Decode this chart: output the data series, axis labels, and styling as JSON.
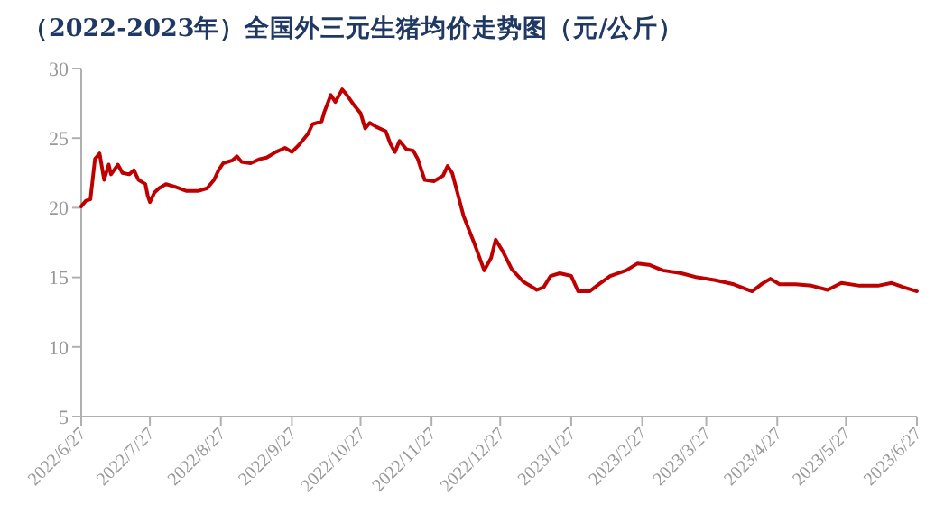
{
  "chart_data": {
    "type": "line",
    "title": "（2022-2023年）全国外三元生猪均价走势图（元/公斤）",
    "x": [
      "2022-06-27",
      "2022-06-29",
      "2022-07-01",
      "2022-07-03",
      "2022-07-05",
      "2022-07-07",
      "2022-07-09",
      "2022-07-10",
      "2022-07-13",
      "2022-07-15",
      "2022-07-18",
      "2022-07-20",
      "2022-07-22",
      "2022-07-25",
      "2022-07-26",
      "2022-07-27",
      "2022-07-29",
      "2022-07-31",
      "2022-08-03",
      "2022-08-07",
      "2022-08-12",
      "2022-08-17",
      "2022-08-21",
      "2022-08-24",
      "2022-08-26",
      "2022-08-28",
      "2022-09-01",
      "2022-09-03",
      "2022-09-05",
      "2022-09-09",
      "2022-09-13",
      "2022-09-16",
      "2022-09-20",
      "2022-09-24",
      "2022-09-27",
      "2022-09-30",
      "2022-10-04",
      "2022-10-06",
      "2022-10-10",
      "2022-10-11",
      "2022-10-14",
      "2022-10-16",
      "2022-10-19",
      "2022-10-21",
      "2022-10-24",
      "2022-10-27",
      "2022-10-29",
      "2022-10-31",
      "2022-11-03",
      "2022-11-07",
      "2022-11-09",
      "2022-11-11",
      "2022-11-13",
      "2022-11-16",
      "2022-11-19",
      "2022-11-21",
      "2022-11-24",
      "2022-11-28",
      "2022-12-02",
      "2022-12-04",
      "2022-12-06",
      "2022-12-11",
      "2022-12-16",
      "2022-12-20",
      "2022-12-23",
      "2022-12-25",
      "2022-12-28",
      "2023-01-01",
      "2023-01-06",
      "2023-01-12",
      "2023-01-15",
      "2023-01-18",
      "2023-01-22",
      "2023-01-27",
      "2023-01-30",
      "2023-02-04",
      "2023-02-08",
      "2023-02-13",
      "2023-02-20",
      "2023-02-25",
      "2023-03-02",
      "2023-03-08",
      "2023-03-16",
      "2023-03-23",
      "2023-03-31",
      "2023-04-08",
      "2023-04-16",
      "2023-04-20",
      "2023-04-24",
      "2023-04-28",
      "2023-05-05",
      "2023-05-12",
      "2023-05-19",
      "2023-05-25",
      "2023-06-02",
      "2023-06-10",
      "2023-06-16",
      "2023-06-21",
      "2023-06-27"
    ],
    "series": [
      {
        "color": "#c00000",
        "values": [
          20.1,
          20.5,
          20.6,
          23.5,
          23.9,
          22.0,
          23.1,
          22.4,
          23.1,
          22.5,
          22.4,
          22.7,
          22.0,
          21.7,
          20.9,
          20.4,
          21.1,
          21.4,
          21.7,
          21.5,
          21.2,
          21.2,
          21.4,
          22.0,
          22.7,
          23.2,
          23.4,
          23.7,
          23.3,
          23.2,
          23.5,
          23.6,
          24.0,
          24.3,
          24.0,
          24.5,
          25.3,
          26.0,
          26.2,
          26.8,
          28.1,
          27.6,
          28.5,
          28.1,
          27.4,
          26.8,
          25.7,
          26.1,
          25.8,
          25.5,
          24.6,
          24.0,
          24.8,
          24.2,
          24.1,
          23.5,
          22.0,
          21.9,
          22.3,
          23.0,
          22.5,
          19.4,
          17.3,
          15.5,
          16.4,
          17.7,
          16.9,
          15.6,
          14.7,
          14.1,
          14.3,
          15.1,
          15.3,
          15.1,
          14.0,
          14.0,
          14.5,
          15.1,
          15.5,
          16.0,
          15.9,
          15.5,
          15.3,
          15.0,
          14.8,
          14.5,
          14.0,
          14.5,
          14.9,
          14.5,
          14.5,
          14.4,
          14.1,
          14.6,
          14.4,
          14.4,
          14.6,
          14.3,
          14.0
        ]
      }
    ],
    "xlim": [
      "2022-06-27",
      "2023-06-27"
    ],
    "xticks": [
      {
        "value": "2022-06-27",
        "label": "2022/6/27"
      },
      {
        "value": "2022-07-27",
        "label": "2022/7/27"
      },
      {
        "value": "2022-08-27",
        "label": "2022/8/27"
      },
      {
        "value": "2022-09-27",
        "label": "2022/9/27"
      },
      {
        "value": "2022-10-27",
        "label": "2022/10/27"
      },
      {
        "value": "2022-11-27",
        "label": "2022/11/27"
      },
      {
        "value": "2022-12-27",
        "label": "2022/12/27"
      },
      {
        "value": "2023-01-27",
        "label": "2023/1/27"
      },
      {
        "value": "2023-02-27",
        "label": "2023/2/27"
      },
      {
        "value": "2023-03-27",
        "label": "2023/3/27"
      },
      {
        "value": "2023-04-27",
        "label": "2023/4/27"
      },
      {
        "value": "2023-05-27",
        "label": "2023/5/27"
      },
      {
        "value": "2023-06-27",
        "label": "2023/6/27"
      }
    ],
    "ylim": [
      5,
      30
    ],
    "yticks": [
      5,
      10,
      15,
      20,
      25,
      30
    ],
    "grid": false,
    "marker": "none",
    "line_style": "solid"
  }
}
